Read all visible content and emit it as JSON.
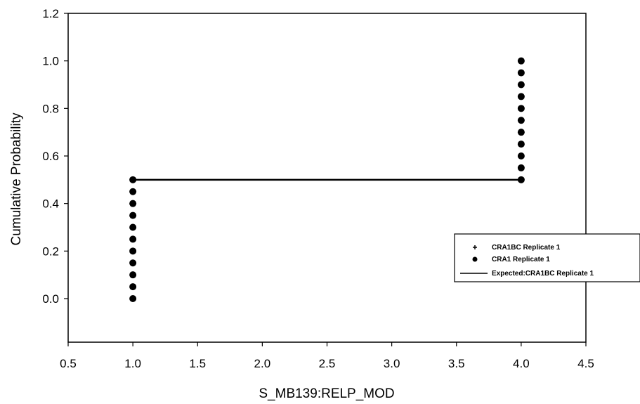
{
  "chart_data": {
    "type": "scatter",
    "title": "",
    "xlabel": "S_MB139:RELP_MOD",
    "ylabel": "Cumulative Probability",
    "xlim": [
      0.5,
      4.5
    ],
    "ylim": [
      -0.17,
      1.2
    ],
    "x_ticks": [
      "0.5",
      "1.0",
      "1.5",
      "2.0",
      "2.5",
      "3.0",
      "3.5",
      "4.0",
      "4.5"
    ],
    "y_ticks": [
      "0.0",
      "0.2",
      "0.4",
      "0.6",
      "0.8",
      "1.0",
      "1.2"
    ],
    "grid": false,
    "legend_position": "right",
    "series": [
      {
        "name": "CRA1BC Replicate 1",
        "marker": "plus",
        "points": [
          [
            1.0,
            0.0
          ],
          [
            1.0,
            0.05
          ],
          [
            1.0,
            0.1
          ],
          [
            1.0,
            0.15
          ],
          [
            1.0,
            0.2
          ],
          [
            1.0,
            0.25
          ],
          [
            1.0,
            0.3
          ],
          [
            1.0,
            0.35
          ],
          [
            1.0,
            0.4
          ],
          [
            1.0,
            0.45
          ],
          [
            1.0,
            0.5
          ],
          [
            4.0,
            0.5
          ],
          [
            4.0,
            0.55
          ],
          [
            4.0,
            0.6
          ],
          [
            4.0,
            0.65
          ],
          [
            4.0,
            0.7
          ],
          [
            4.0,
            0.75
          ],
          [
            4.0,
            0.8
          ],
          [
            4.0,
            0.85
          ],
          [
            4.0,
            0.9
          ],
          [
            4.0,
            0.95
          ],
          [
            4.0,
            1.0
          ]
        ]
      },
      {
        "name": "CRA1 Replicate 1",
        "marker": "circle",
        "points": [
          [
            1.0,
            0.0
          ],
          [
            1.0,
            0.05
          ],
          [
            1.0,
            0.1
          ],
          [
            1.0,
            0.15
          ],
          [
            1.0,
            0.2
          ],
          [
            1.0,
            0.25
          ],
          [
            1.0,
            0.3
          ],
          [
            1.0,
            0.35
          ],
          [
            1.0,
            0.4
          ],
          [
            1.0,
            0.45
          ],
          [
            1.0,
            0.5
          ],
          [
            4.0,
            0.5
          ],
          [
            4.0,
            0.55
          ],
          [
            4.0,
            0.6
          ],
          [
            4.0,
            0.65
          ],
          [
            4.0,
            0.7
          ],
          [
            4.0,
            0.75
          ],
          [
            4.0,
            0.8
          ],
          [
            4.0,
            0.85
          ],
          [
            4.0,
            0.9
          ],
          [
            4.0,
            0.95
          ],
          [
            4.0,
            1.0
          ]
        ]
      },
      {
        "name": "Expected:CRA1BC Replicate 1",
        "marker": "line",
        "points": [
          [
            1.0,
            0.5
          ],
          [
            4.0,
            0.5
          ]
        ]
      }
    ]
  }
}
